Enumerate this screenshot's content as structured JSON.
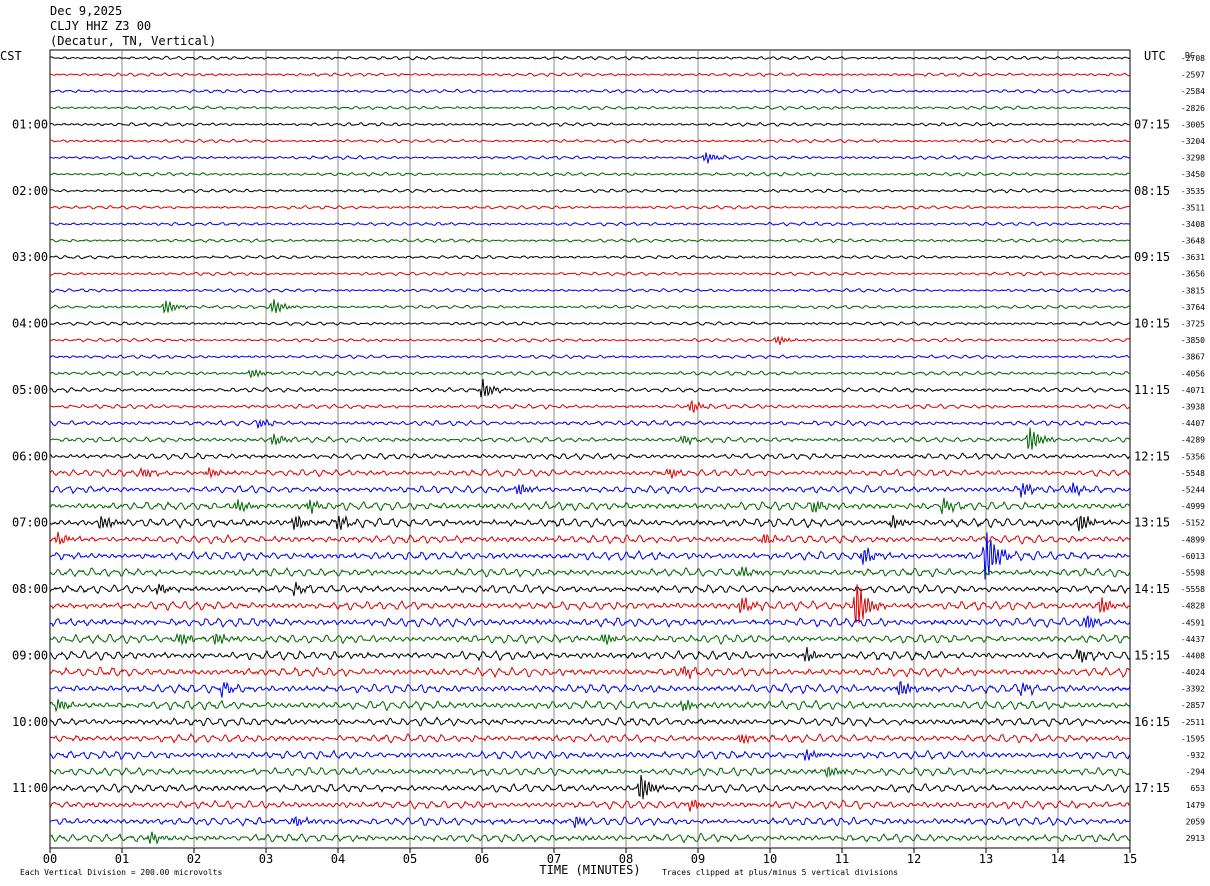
{
  "header": {
    "date": "Dec 9,2025",
    "station": "CLJY HHZ Z3 00",
    "location": "(Decatur, TN, Vertical)"
  },
  "chart_data": {
    "type": "line",
    "left_axis_label": "CST",
    "right_axis_label": "UTC",
    "dc_label": "DC",
    "left_time_labels": [
      "01:00",
      "02:00",
      "03:00",
      "04:00",
      "05:00",
      "06:00",
      "07:00",
      "08:00",
      "09:00",
      "10:00",
      "11:00"
    ],
    "right_time_labels": [
      "07:15",
      "08:15",
      "09:15",
      "10:15",
      "11:15",
      "12:15",
      "13:15",
      "14:15",
      "15:15",
      "16:15",
      "17:15"
    ],
    "x_ticks": [
      "00",
      "01",
      "02",
      "03",
      "04",
      "05",
      "06",
      "07",
      "08",
      "09",
      "10",
      "11",
      "12",
      "13",
      "14",
      "15"
    ],
    "xlabel": "TIME (MINUTES)",
    "xlim": [
      0,
      15
    ],
    "footer_left": "Each Vertical Division =  200.00 microvolts",
    "footer_right": "Traces clipped at plus/minus 5 vertical divisions",
    "trace_colors": [
      "#000000",
      "#dd0000",
      "#0000ee",
      "#006600"
    ],
    "dc_offsets": [
      "-2708",
      "-2597",
      "-2584",
      "-2826",
      "-3005",
      "-3204",
      "-3298",
      "-3450",
      "-3535",
      "-3511",
      "-3408",
      "-3648",
      "-3631",
      "-3656",
      "-3815",
      "-3764",
      "-3725",
      "-3850",
      "-3867",
      "-4056",
      "-4071",
      "-3938",
      "-4407",
      "-4289",
      "-5356",
      "-5548",
      "-5244",
      "-4999",
      "-5152",
      "-4899",
      "-6013",
      "-5598",
      "-5558",
      "-4828",
      "-4591",
      "-4437",
      "-4408",
      "-4024",
      "-3392",
      "-2857",
      "-2511",
      "-1595",
      "-932",
      "-294",
      "653",
      "1479",
      "2059",
      "2913"
    ],
    "noise_level": [
      1,
      1,
      1,
      1,
      1,
      1,
      1,
      1,
      1,
      1,
      1,
      1,
      1,
      1,
      1,
      1,
      1,
      1,
      1,
      1.2,
      1.3,
      1.3,
      1.5,
      1.6,
      1.8,
      2,
      2.2,
      2.5,
      2.6,
      2.4,
      2.5,
      2.4,
      2.4,
      2.6,
      2.6,
      2.6,
      2.6,
      2.6,
      2.6,
      2.6,
      2.4,
      2.4,
      2.4,
      2.4,
      2.4,
      2.4,
      2.4,
      2.4
    ],
    "events": [
      {
        "trace": 6,
        "minute": 9.1,
        "amp": 6
      },
      {
        "trace": 15,
        "minute": 1.6,
        "amp": 8
      },
      {
        "trace": 15,
        "minute": 3.1,
        "amp": 8
      },
      {
        "trace": 17,
        "minute": 10.1,
        "amp": 5
      },
      {
        "trace": 19,
        "minute": 2.8,
        "amp": 5
      },
      {
        "trace": 20,
        "minute": 6.0,
        "amp": 10
      },
      {
        "trace": 21,
        "minute": 8.9,
        "amp": 7
      },
      {
        "trace": 22,
        "minute": 2.9,
        "amp": 5
      },
      {
        "trace": 23,
        "minute": 3.1,
        "amp": 6
      },
      {
        "trace": 23,
        "minute": 8.8,
        "amp": 5
      },
      {
        "trace": 23,
        "minute": 13.6,
        "amp": 14
      },
      {
        "trace": 25,
        "minute": 1.3,
        "amp": 5
      },
      {
        "trace": 25,
        "minute": 2.2,
        "amp": 5
      },
      {
        "trace": 25,
        "minute": 8.6,
        "amp": 5
      },
      {
        "trace": 26,
        "minute": 6.5,
        "amp": 7
      },
      {
        "trace": 26,
        "minute": 13.5,
        "amp": 8
      },
      {
        "trace": 26,
        "minute": 14.2,
        "amp": 6
      },
      {
        "trace": 27,
        "minute": 2.6,
        "amp": 7
      },
      {
        "trace": 27,
        "minute": 3.6,
        "amp": 7
      },
      {
        "trace": 27,
        "minute": 10.6,
        "amp": 7
      },
      {
        "trace": 27,
        "minute": 12.4,
        "amp": 7
      },
      {
        "trace": 28,
        "minute": 0.7,
        "amp": 8
      },
      {
        "trace": 28,
        "minute": 3.4,
        "amp": 8
      },
      {
        "trace": 28,
        "minute": 4.0,
        "amp": 8
      },
      {
        "trace": 28,
        "minute": 11.7,
        "amp": 7
      },
      {
        "trace": 28,
        "minute": 14.3,
        "amp": 10
      },
      {
        "trace": 29,
        "minute": 0.1,
        "amp": 6
      },
      {
        "trace": 29,
        "minute": 9.9,
        "amp": 6
      },
      {
        "trace": 30,
        "minute": 11.3,
        "amp": 10
      },
      {
        "trace": 30,
        "minute": 13.0,
        "amp": 30
      },
      {
        "trace": 31,
        "minute": 9.6,
        "amp": 6
      },
      {
        "trace": 32,
        "minute": 1.5,
        "amp": 6
      },
      {
        "trace": 32,
        "minute": 3.4,
        "amp": 6
      },
      {
        "trace": 33,
        "minute": 9.6,
        "amp": 9
      },
      {
        "trace": 33,
        "minute": 11.2,
        "amp": 28
      },
      {
        "trace": 33,
        "minute": 14.6,
        "amp": 10
      },
      {
        "trace": 34,
        "minute": 14.4,
        "amp": 8
      },
      {
        "trace": 35,
        "minute": 1.8,
        "amp": 7
      },
      {
        "trace": 35,
        "minute": 2.3,
        "amp": 7
      },
      {
        "trace": 35,
        "minute": 7.7,
        "amp": 7
      },
      {
        "trace": 36,
        "minute": 10.5,
        "amp": 7
      },
      {
        "trace": 36,
        "minute": 14.3,
        "amp": 7
      },
      {
        "trace": 37,
        "minute": 8.8,
        "amp": 6
      },
      {
        "trace": 38,
        "minute": 2.4,
        "amp": 7
      },
      {
        "trace": 38,
        "minute": 11.8,
        "amp": 9
      },
      {
        "trace": 38,
        "minute": 13.5,
        "amp": 6
      },
      {
        "trace": 39,
        "minute": 0.1,
        "amp": 6
      },
      {
        "trace": 39,
        "minute": 8.8,
        "amp": 6
      },
      {
        "trace": 41,
        "minute": 9.6,
        "amp": 6
      },
      {
        "trace": 42,
        "minute": 10.5,
        "amp": 6
      },
      {
        "trace": 43,
        "minute": 10.8,
        "amp": 6
      },
      {
        "trace": 44,
        "minute": 8.2,
        "amp": 16
      },
      {
        "trace": 45,
        "minute": 8.9,
        "amp": 6
      },
      {
        "trace": 46,
        "minute": 3.4,
        "amp": 6
      },
      {
        "trace": 46,
        "minute": 7.3,
        "amp": 6
      },
      {
        "trace": 47,
        "minute": 1.4,
        "amp": 6
      }
    ]
  }
}
